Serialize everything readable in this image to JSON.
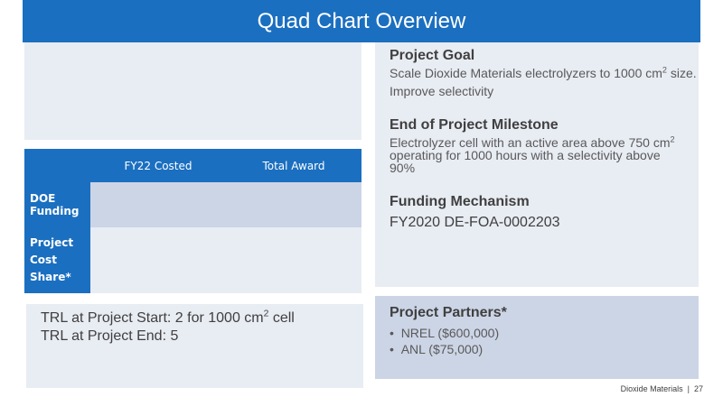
{
  "title": "Quad Chart Overview",
  "table": {
    "header": [
      "FY22 Costed",
      "Total Award"
    ],
    "rows": [
      {
        "label": "DOE Funding"
      },
      {
        "label": "Project Cost Share*"
      }
    ]
  },
  "trl": {
    "start": [
      "TRL at Project Start: 2 for 1000 cm",
      "2",
      " cell"
    ],
    "end": "TRL at Project End: 5"
  },
  "goal": {
    "heading": "Project Goal",
    "line1": [
      "Scale Dioxide Materials electrolyzers to 1000 cm",
      "2",
      " size."
    ],
    "line2": "Improve selectivity"
  },
  "milestone": {
    "heading": "End of Project Milestone",
    "text": [
      "Electrolyzer cell with an active area above 750 cm",
      "2",
      " operating for 1000 hours with a selectivity above 90%"
    ]
  },
  "funding": {
    "heading": "Funding Mechanism",
    "text": "FY2020 DE-FOA-0002203"
  },
  "partners": {
    "heading": "Project Partners*",
    "items": [
      "NREL ($600,000)",
      "ANL ($75,000)"
    ]
  },
  "footer": {
    "org": "Dioxide Materials",
    "page": "27"
  }
}
